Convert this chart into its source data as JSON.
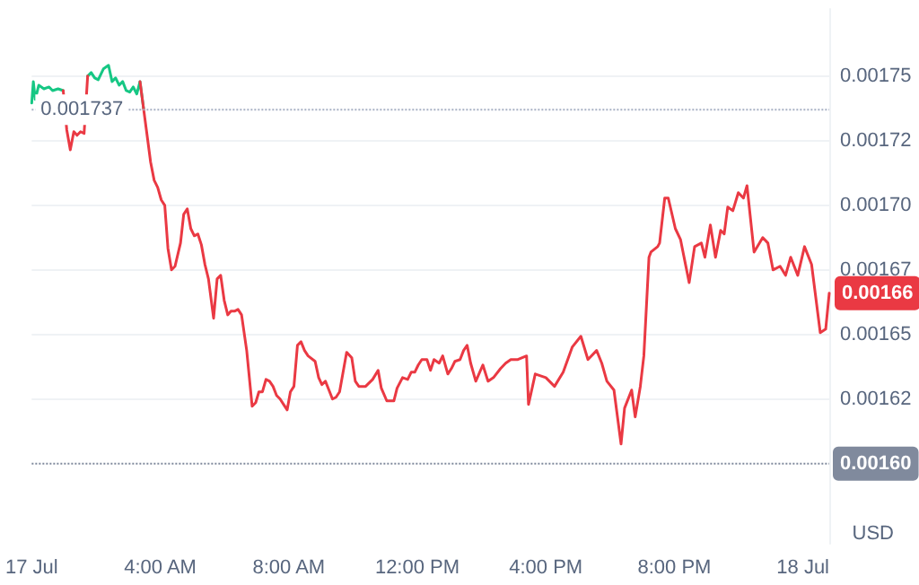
{
  "chart_data": {
    "type": "line",
    "series": [
      {
        "color": "#16c784",
        "x": [
          0,
          0.05,
          0.11,
          0.22,
          0.38,
          0.54,
          0.65,
          0.82,
          0.98,
          1.09,
          1.63,
          1.74,
          1.85,
          1.96,
          2.07,
          2.23,
          2.39,
          2.5,
          2.61,
          2.72,
          2.83,
          2.94,
          3.05,
          3.16,
          3.27,
          3.37,
          3.48
        ],
        "values": [
          0.0017396,
          0.0017479,
          0.001741,
          0.0017465,
          0.0017451,
          0.0017458,
          0.0017444,
          0.0017451,
          0.0017444,
          null,
          null,
          0.00175,
          0.0017514,
          0.0017493,
          0.0017486,
          0.0017528,
          0.0017542,
          0.0017479,
          0.0017493,
          0.0017465,
          0.0017479,
          0.0017444,
          0.0017438,
          0.0017458,
          0.0017431,
          0.0017479,
          0.0017375
        ]
      },
      {
        "color": "#ea3943",
        "x": [
          0.98,
          1.09,
          1.2,
          1.31,
          1.41,
          1.52,
          1.63,
          1.74,
          2.5,
          3.37,
          3.48,
          3.59,
          3.7,
          3.81,
          3.92,
          4.03,
          4.14,
          4.24,
          4.35,
          4.46,
          4.63,
          4.73,
          4.84,
          4.95,
          5.06,
          5.17,
          5.28,
          5.39,
          5.5,
          5.66,
          5.77,
          5.88,
          5.99,
          6.1,
          6.2,
          6.31,
          6.42,
          6.53,
          6.69,
          6.86,
          6.97,
          7.07,
          7.18,
          7.29,
          7.4,
          7.51,
          7.62,
          7.73,
          7.84,
          7.95,
          8.05,
          8.16,
          8.27,
          8.38,
          8.49,
          8.6,
          8.82,
          8.93,
          9.03,
          9.14,
          9.25,
          9.36,
          9.47,
          9.58,
          9.8,
          9.96,
          10.07,
          10.18,
          10.39,
          10.61,
          10.78,
          10.88,
          11.05,
          11.27,
          11.37,
          11.54,
          11.7,
          11.81,
          11.92,
          12.03,
          12.14,
          12.3,
          12.41,
          12.52,
          12.68,
          12.79,
          12.95,
          13.06,
          13.17,
          13.33,
          13.44,
          13.55,
          13.66,
          13.82,
          14.04,
          14.2,
          14.37,
          14.59,
          14.75,
          14.91,
          15.13,
          15.4,
          15.46,
          15.67,
          16.0,
          16.27,
          16.54,
          16.82,
          17.09,
          17.31,
          17.58,
          17.74,
          17.9,
          18.12,
          18.34,
          18.45,
          18.67,
          18.78,
          18.94,
          19.05,
          19.21,
          19.27,
          19.48,
          19.54,
          19.7,
          19.81,
          20.03,
          20.19,
          20.46,
          20.63,
          20.84,
          20.95,
          21.12,
          21.28,
          21.44,
          21.55,
          21.66,
          21.82,
          21.99,
          22.15,
          22.26,
          22.48,
          22.75,
          22.91,
          23.07,
          23.29,
          23.46,
          23.62,
          23.84,
          24.05,
          24.27,
          24.54,
          24.71,
          24.82
        ],
        "values": [
          0.0017444,
          0.0017292,
          0.0017215,
          0.0017285,
          0.0017271,
          0.0017285,
          0.0017278,
          0.00175,
          null,
          0.0017479,
          0.0017375,
          0.0017271,
          0.0017167,
          0.0017097,
          0.0017069,
          0.0017021,
          0.0017,
          0.0016833,
          0.001675,
          0.0016764,
          0.0016854,
          0.0016965,
          0.0016986,
          0.001691,
          0.0016882,
          0.0016889,
          0.0016847,
          0.0016771,
          0.0016715,
          0.0016563,
          0.0016715,
          0.0016729,
          0.0016632,
          0.0016576,
          0.001659,
          0.001659,
          0.0016597,
          0.0016576,
          0.0016438,
          0.0016222,
          0.0016236,
          0.0016278,
          0.0016278,
          0.0016326,
          0.0016319,
          0.0016299,
          0.0016264,
          0.001625,
          0.0016229,
          0.0016208,
          0.0016278,
          0.0016299,
          0.0016458,
          0.0016472,
          0.0016438,
          0.0016417,
          0.0016396,
          0.0016333,
          0.0016306,
          0.0016319,
          0.0016285,
          0.001625,
          0.0016257,
          0.0016278,
          0.0016431,
          0.001641,
          0.0016319,
          0.0016299,
          0.0016299,
          0.0016326,
          0.0016361,
          0.0016292,
          0.0016243,
          0.0016243,
          0.0016292,
          0.0016333,
          0.0016326,
          0.0016354,
          0.0016354,
          0.0016382,
          0.0016403,
          0.0016403,
          0.0016361,
          0.0016403,
          0.0016389,
          0.0016417,
          0.0016347,
          0.0016368,
          0.0016396,
          0.0016403,
          0.0016438,
          0.0016458,
          0.0016389,
          0.0016319,
          0.0016382,
          0.0016319,
          0.0016333,
          0.0016368,
          0.0016389,
          0.0016403,
          0.0016403,
          0.0016417,
          0.0016229,
          0.0016347,
          0.0016333,
          0.0016299,
          0.0016354,
          0.0016451,
          0.0016493,
          0.0016403,
          0.0016438,
          0.0016389,
          0.0016319,
          0.0016285,
          0.0016076,
          0.0016215,
          0.0016285,
          0.0016181,
          0.0016299,
          0.0016417,
          0.0016799,
          0.0016819,
          0.001684,
          0.0016854,
          0.0017028,
          0.0017028,
          0.001691,
          0.0016868,
          0.0016701,
          0.001684,
          0.0016854,
          0.0016799,
          0.0016924,
          0.0016799,
          0.0016903,
          0.0016889,
          0.0016993,
          0.0016979,
          0.0017049,
          0.0017028,
          0.0017076,
          0.0016819,
          0.0016875,
          0.0016854,
          0.001675,
          0.0016764,
          0.0016729,
          0.0016799,
          0.0016729,
          0.001684,
          0.0016771,
          0.0016507,
          0.0016521,
          0.001666
        ]
      }
    ],
    "xlim": [
      0,
      24.82
    ],
    "xticks": [
      {
        "value": 0,
        "label": "17 Jul"
      },
      {
        "value": 4,
        "label": "4:00 AM"
      },
      {
        "value": 8,
        "label": "8:00 AM"
      },
      {
        "value": 12,
        "label": "12:00 PM"
      },
      {
        "value": 16,
        "label": "4:00 PM"
      },
      {
        "value": 20,
        "label": "8:00 PM"
      },
      {
        "value": 24,
        "label": "18 Jul"
      }
    ],
    "ylim": [
      0.001569,
      0.001776
    ],
    "yticks": [
      0.00175,
      {
        "value": 0.001725,
        "label": "0.00172"
      },
      {
        "value": 0.0017,
        "label": "0.00170"
      },
      {
        "value": 0.001675,
        "label": "0.00167"
      },
      0.00165,
      {
        "value": 0.001625,
        "label": "0.00162"
      }
    ],
    "ylabel": "USD",
    "grid": "y",
    "marker": "none",
    "ref_lines": [
      {
        "axis": "y",
        "value": 0.001737,
        "label": "0.001737",
        "color": "#a6b0c3",
        "line_style": "dotted"
      },
      {
        "axis": "y",
        "value": 0.0016,
        "label": "0.00160",
        "color": "#808a9d",
        "line_style": "dotted"
      }
    ],
    "annotations": [
      "0.00166"
    ]
  }
}
